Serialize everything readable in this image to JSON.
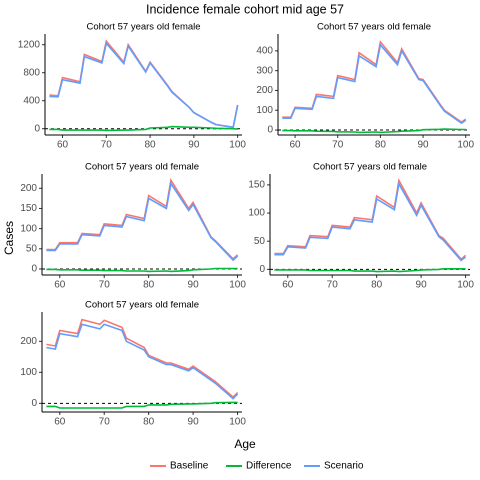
{
  "title": "Incidence female cohort mid age 57",
  "y_label": "Cases",
  "x_label": "Age",
  "chart_data": [
    {
      "type": "line",
      "title": "Cohort 57 years old female",
      "x": [
        57,
        59,
        60,
        64,
        65,
        69,
        70,
        74,
        75,
        79,
        80,
        84,
        85,
        89,
        90,
        94,
        95,
        99,
        100
      ],
      "xlim": [
        56,
        101
      ],
      "xticks": [
        60,
        70,
        80,
        90,
        100
      ],
      "ylim": [
        -90,
        1310
      ],
      "yticks": [
        0,
        400,
        800,
        1200
      ],
      "hline": 0,
      "series": [
        {
          "name": "Baseline",
          "color": "#F8766D",
          "values": [
            480,
            470,
            730,
            670,
            1060,
            960,
            1250,
            950,
            1200,
            820,
            950,
            620,
            530,
            300,
            230,
            90,
            60,
            20,
            340
          ]
        },
        {
          "name": "Difference",
          "color": "#00BA38",
          "values": [
            -10,
            -10,
            -20,
            -20,
            -20,
            -20,
            -25,
            -20,
            -20,
            -10,
            10,
            20,
            30,
            20,
            20,
            10,
            5,
            0,
            -5
          ]
        },
        {
          "name": "Scenario",
          "color": "#619CFF",
          "values": [
            460,
            455,
            700,
            650,
            1030,
            940,
            1220,
            930,
            1180,
            810,
            940,
            610,
            520,
            300,
            230,
            90,
            60,
            20,
            330
          ]
        }
      ]
    },
    {
      "type": "line",
      "title": "Cohort 57 years old female",
      "x": [
        57,
        59,
        60,
        64,
        65,
        69,
        70,
        74,
        75,
        79,
        80,
        84,
        85,
        89,
        90,
        94,
        95,
        99,
        100
      ],
      "xlim": [
        56,
        101
      ],
      "xticks": [
        60,
        70,
        80,
        90,
        100
      ],
      "ylim": [
        -25,
        470
      ],
      "yticks": [
        0,
        100,
        200,
        300,
        400
      ],
      "hline": 0,
      "series": [
        {
          "name": "Baseline",
          "color": "#F8766D",
          "values": [
            65,
            65,
            115,
            110,
            180,
            170,
            275,
            255,
            390,
            330,
            445,
            340,
            410,
            260,
            255,
            130,
            100,
            40,
            55
          ]
        },
        {
          "name": "Difference",
          "color": "#00BA38",
          "values": [
            -3,
            -3,
            -4,
            -4,
            -6,
            -7,
            -9,
            -10,
            -12,
            -10,
            -12,
            -8,
            -6,
            -3,
            2,
            4,
            5,
            3,
            3
          ]
        },
        {
          "name": "Scenario",
          "color": "#619CFF",
          "values": [
            60,
            60,
            110,
            105,
            170,
            160,
            265,
            245,
            375,
            320,
            430,
            330,
            400,
            255,
            250,
            125,
            95,
            35,
            50
          ]
        }
      ]
    },
    {
      "type": "line",
      "title": "Cohort 57 years old female",
      "x": [
        57,
        59,
        60,
        64,
        65,
        69,
        70,
        74,
        75,
        79,
        80,
        84,
        85,
        89,
        90,
        94,
        95,
        99,
        100
      ],
      "xlim": [
        56,
        101
      ],
      "xticks": [
        60,
        70,
        80,
        90,
        100
      ],
      "ylim": [
        -15,
        228
      ],
      "yticks": [
        0,
        50,
        100,
        150,
        200
      ],
      "hline": 0,
      "series": [
        {
          "name": "Baseline",
          "color": "#F8766D",
          "values": [
            48,
            48,
            65,
            65,
            88,
            85,
            112,
            108,
            135,
            125,
            182,
            155,
            220,
            150,
            165,
            80,
            70,
            25,
            35
          ]
        },
        {
          "name": "Difference",
          "color": "#00BA38",
          "values": [
            -1,
            -1,
            -2,
            -2,
            -3,
            -3,
            -4,
            -4,
            -5,
            -5,
            -6,
            -5,
            -6,
            -4,
            -2,
            0,
            1,
            1,
            1
          ]
        },
        {
          "name": "Scenario",
          "color": "#619CFF",
          "values": [
            46,
            46,
            62,
            62,
            85,
            82,
            108,
            104,
            130,
            120,
            175,
            150,
            212,
            145,
            160,
            78,
            68,
            22,
            32
          ]
        }
      ]
    },
    {
      "type": "line",
      "title": "Cohort 57 years old female",
      "x": [
        57,
        59,
        60,
        64,
        65,
        69,
        70,
        74,
        75,
        79,
        80,
        84,
        85,
        89,
        90,
        94,
        95,
        99,
        100
      ],
      "xlim": [
        56,
        101
      ],
      "xticks": [
        60,
        70,
        80,
        90,
        100
      ],
      "ylim": [
        -10,
        164
      ],
      "yticks": [
        0,
        50,
        100,
        150
      ],
      "hline": 0,
      "series": [
        {
          "name": "Baseline",
          "color": "#F8766D",
          "values": [
            28,
            28,
            42,
            40,
            60,
            58,
            78,
            75,
            92,
            88,
            130,
            110,
            158,
            100,
            118,
            60,
            55,
            18,
            25
          ]
        },
        {
          "name": "Difference",
          "color": "#00BA38",
          "values": [
            -1,
            -1,
            -1,
            -1,
            -2,
            -2,
            -2,
            -2,
            -3,
            -3,
            -4,
            -3,
            -4,
            -2,
            -1,
            0,
            1,
            1,
            1
          ]
        },
        {
          "name": "Scenario",
          "color": "#619CFF",
          "values": [
            26,
            26,
            40,
            38,
            57,
            55,
            75,
            72,
            88,
            84,
            125,
            106,
            152,
            96,
            114,
            58,
            52,
            16,
            22
          ]
        }
      ]
    },
    {
      "type": "line",
      "title": "Cohort 57 years old female",
      "x": [
        57,
        59,
        60,
        64,
        65,
        69,
        70,
        74,
        75,
        79,
        80,
        84,
        85,
        89,
        90,
        94,
        95,
        99,
        100
      ],
      "xlim": [
        56,
        101
      ],
      "xticks": [
        60,
        70,
        80,
        90,
        100
      ],
      "ylim": [
        -28,
        285
      ],
      "yticks": [
        0,
        100,
        200
      ],
      "hline": 0,
      "series": [
        {
          "name": "Baseline",
          "color": "#F8766D",
          "values": [
            190,
            185,
            235,
            225,
            270,
            255,
            268,
            245,
            210,
            180,
            155,
            130,
            130,
            110,
            120,
            80,
            70,
            20,
            35
          ]
        },
        {
          "name": "Difference",
          "color": "#00BA38",
          "values": [
            -10,
            -10,
            -15,
            -15,
            -15,
            -15,
            -15,
            -15,
            -10,
            -10,
            -5,
            -5,
            -3,
            -2,
            -2,
            0,
            2,
            3,
            3
          ]
        },
        {
          "name": "Scenario",
          "color": "#619CFF",
          "values": [
            180,
            175,
            225,
            215,
            255,
            240,
            255,
            235,
            200,
            172,
            150,
            125,
            125,
            105,
            115,
            75,
            65,
            15,
            30
          ]
        }
      ]
    }
  ]
}
